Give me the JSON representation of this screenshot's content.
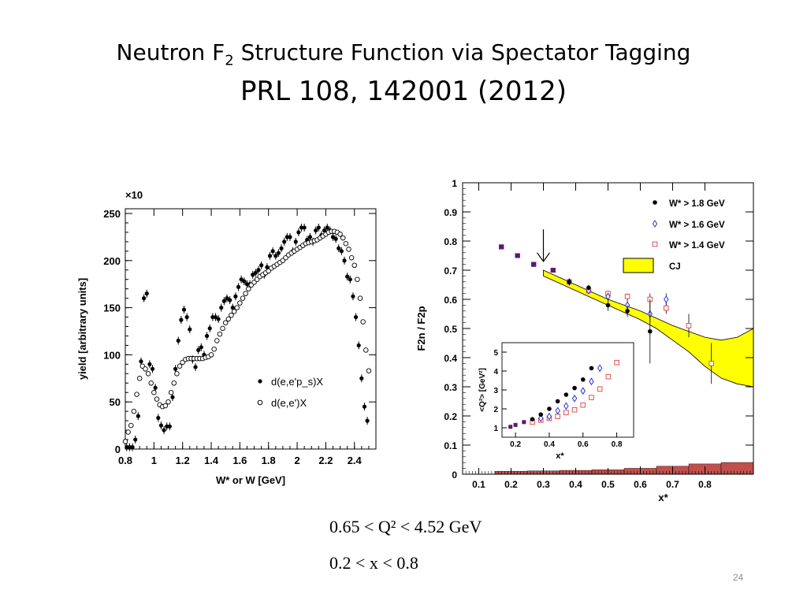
{
  "slide": {
    "title_main": "Neutron F",
    "title_sub": "2",
    "title_rest": " Structure Function via Spectator Tagging",
    "subtitle": "PRL 108, 142001 (2012)",
    "condition_q2": "0.65 < Q² < 4.52 GeV",
    "condition_x": "0.2 < x < 0.8",
    "page_number": "24"
  },
  "chart_data": [
    {
      "type": "scatter",
      "multiplier_label": "×10",
      "xlabel": "W* or W [GeV]",
      "ylabel": "yield [arbitrary units]",
      "xlim": [
        0.8,
        2.55
      ],
      "ylim": [
        0,
        255
      ],
      "xticks": [
        "0.8",
        "1",
        "1.2",
        "1.4",
        "1.6",
        "1.8",
        "2",
        "2.2",
        "2.4"
      ],
      "yticks": [
        "0",
        "50",
        "100",
        "150",
        "200",
        "250"
      ],
      "legend_position": "center-right",
      "series": [
        {
          "name": "d(e,e'p_s)X",
          "marker": "filled",
          "x": [
            0.81,
            0.83,
            0.85,
            0.87,
            0.89,
            0.91,
            0.93,
            0.95,
            0.97,
            0.99,
            1.01,
            1.03,
            1.05,
            1.07,
            1.09,
            1.11,
            1.13,
            1.15,
            1.17,
            1.19,
            1.21,
            1.23,
            1.25,
            1.27,
            1.29,
            1.31,
            1.33,
            1.35,
            1.37,
            1.39,
            1.41,
            1.43,
            1.45,
            1.47,
            1.49,
            1.51,
            1.53,
            1.55,
            1.57,
            1.59,
            1.61,
            1.63,
            1.65,
            1.67,
            1.69,
            1.71,
            1.73,
            1.75,
            1.77,
            1.79,
            1.81,
            1.83,
            1.85,
            1.87,
            1.89,
            1.91,
            1.93,
            1.95,
            1.97,
            1.99,
            2.01,
            2.03,
            2.05,
            2.07,
            2.09,
            2.11,
            2.13,
            2.15,
            2.17,
            2.19,
            2.21,
            2.23,
            2.25,
            2.27,
            2.29,
            2.31,
            2.33,
            2.35,
            2.37,
            2.39,
            2.41,
            2.43,
            2.45,
            2.47,
            2.49
          ],
          "y": [
            2,
            2,
            2,
            10,
            35,
            93,
            160,
            165,
            90,
            85,
            65,
            33,
            25,
            20,
            24,
            24,
            55,
            85,
            115,
            137,
            148,
            140,
            127,
            95,
            87,
            105,
            108,
            100,
            120,
            128,
            140,
            140,
            138,
            150,
            157,
            160,
            158,
            150,
            162,
            172,
            180,
            178,
            175,
            175,
            185,
            187,
            190,
            195,
            185,
            193,
            205,
            210,
            205,
            208,
            213,
            220,
            225,
            225,
            210,
            220,
            230,
            235,
            235,
            222,
            225,
            220,
            232,
            235,
            227,
            232,
            235,
            232,
            225,
            223,
            213,
            210,
            200,
            183,
            180,
            162,
            140,
            110,
            75,
            45,
            30
          ]
        },
        {
          "name": "d(e,e')X",
          "marker": "open",
          "x": [
            0.8,
            0.82,
            0.84,
            0.86,
            0.88,
            0.9,
            0.92,
            0.94,
            0.96,
            0.98,
            1.0,
            1.02,
            1.04,
            1.06,
            1.08,
            1.1,
            1.12,
            1.14,
            1.16,
            1.18,
            1.2,
            1.22,
            1.24,
            1.26,
            1.28,
            1.3,
            1.32,
            1.34,
            1.36,
            1.38,
            1.4,
            1.42,
            1.44,
            1.46,
            1.48,
            1.5,
            1.52,
            1.54,
            1.56,
            1.58,
            1.6,
            1.62,
            1.64,
            1.66,
            1.68,
            1.7,
            1.72,
            1.74,
            1.76,
            1.78,
            1.8,
            1.82,
            1.84,
            1.86,
            1.88,
            1.9,
            1.92,
            1.94,
            1.96,
            1.98,
            2.0,
            2.02,
            2.04,
            2.06,
            2.08,
            2.1,
            2.12,
            2.14,
            2.16,
            2.18,
            2.2,
            2.22,
            2.24,
            2.26,
            2.28,
            2.3,
            2.32,
            2.34,
            2.36,
            2.38,
            2.4,
            2.42,
            2.44,
            2.46,
            2.48,
            2.5
          ],
          "y": [
            8,
            18,
            25,
            40,
            58,
            75,
            88,
            85,
            80,
            70,
            60,
            53,
            47,
            45,
            46,
            50,
            60,
            70,
            80,
            88,
            92,
            95,
            96,
            96,
            96,
            96,
            96,
            96,
            97,
            98,
            100,
            106,
            115,
            122,
            128,
            134,
            138,
            142,
            146,
            150,
            155,
            160,
            165,
            170,
            174,
            177,
            180,
            183,
            185,
            187,
            189,
            192,
            194,
            196,
            198,
            200,
            203,
            206,
            208,
            210,
            212,
            214,
            216,
            218,
            219,
            220,
            221,
            222,
            224,
            226,
            228,
            230,
            231,
            231,
            230,
            228,
            224,
            218,
            212,
            203,
            195,
            180,
            160,
            135,
            105,
            83
          ]
        }
      ]
    },
    {
      "type": "scatter",
      "xlabel": "x*",
      "ylabel": "F2n / F2p",
      "xlim": [
        0.05,
        0.95
      ],
      "ylim": [
        0,
        1.0
      ],
      "xticks": [
        "0.1",
        "0.2",
        "0.3",
        "0.4",
        "0.5",
        "0.6",
        "0.7",
        "0.8"
      ],
      "yticks": [
        "0",
        "0.1",
        "0.2",
        "0.3",
        "0.4",
        "0.5",
        "0.6",
        "0.7",
        "0.8",
        "0.9",
        "1"
      ],
      "legend_position": "top-right",
      "arrow_at_x": 0.3,
      "series": [
        {
          "name": "W* > 1.8 GeV",
          "marker": "filled-circle",
          "color": "#000000",
          "x": [
            0.17,
            0.22,
            0.27,
            0.33,
            0.38,
            0.44,
            0.5,
            0.56,
            0.63
          ],
          "y": [
            0.78,
            0.75,
            0.72,
            0.7,
            0.66,
            0.64,
            0.58,
            0.56,
            0.49
          ],
          "err": [
            0.005,
            0.005,
            0.005,
            0.005,
            0.01,
            0.01,
            0.02,
            0.02,
            0.11
          ]
        },
        {
          "name": "W* > 1.6 GeV",
          "marker": "open-diamond",
          "color": "#2a35d6",
          "x": [
            0.17,
            0.22,
            0.27,
            0.33,
            0.38,
            0.44,
            0.5,
            0.56,
            0.63,
            0.68
          ],
          "y": [
            0.78,
            0.75,
            0.72,
            0.7,
            0.66,
            0.63,
            0.61,
            0.58,
            0.55,
            0.6
          ],
          "err": [
            0.005,
            0.005,
            0.005,
            0.005,
            0.01,
            0.01,
            0.01,
            0.02,
            0.03,
            0.02
          ]
        },
        {
          "name": "W* > 1.4 GeV",
          "marker": "open-square",
          "color": "#e05050",
          "x": [
            0.17,
            0.22,
            0.27,
            0.33,
            0.38,
            0.44,
            0.5,
            0.56,
            0.63,
            0.68,
            0.75,
            0.82
          ],
          "y": [
            0.78,
            0.75,
            0.72,
            0.7,
            0.66,
            0.63,
            0.62,
            0.61,
            0.6,
            0.57,
            0.51,
            0.38
          ],
          "err": [
            0.005,
            0.005,
            0.005,
            0.005,
            0.01,
            0.01,
            0.01,
            0.01,
            0.02,
            0.02,
            0.04,
            0.07
          ]
        }
      ],
      "band": {
        "name": "CJ",
        "color": "#ffff00",
        "x": [
          0.3,
          0.35,
          0.4,
          0.45,
          0.5,
          0.55,
          0.6,
          0.65,
          0.7,
          0.75,
          0.8,
          0.85,
          0.9,
          0.95
        ],
        "low": [
          0.68,
          0.655,
          0.63,
          0.605,
          0.58,
          0.555,
          0.53,
          0.5,
          0.46,
          0.42,
          0.37,
          0.33,
          0.31,
          0.3
        ],
        "high": [
          0.7,
          0.675,
          0.65,
          0.625,
          0.6,
          0.58,
          0.56,
          0.535,
          0.51,
          0.49,
          0.47,
          0.46,
          0.47,
          0.5
        ]
      },
      "systematics": {
        "color": "#c0504d",
        "x": [
          0.2,
          0.3,
          0.4,
          0.5,
          0.6,
          0.7,
          0.8,
          0.9
        ],
        "height": [
          0.005,
          0.006,
          0.008,
          0.01,
          0.015,
          0.022,
          0.03,
          0.035
        ]
      },
      "inset": {
        "xlabel": "x*",
        "ylabel": "<Q²> [GeV²]",
        "xlim": [
          0.12,
          0.9
        ],
        "ylim": [
          0.5,
          5.5
        ],
        "xticks": [
          "0.2",
          "0.4",
          "0.6",
          "0.8"
        ],
        "yticks": [
          "1",
          "2",
          "3",
          "4",
          "5"
        ],
        "series": [
          {
            "name": "W* > 1.8 GeV",
            "marker": "filled-circle",
            "color": "#000000",
            "x": [
              0.17,
              0.2,
              0.25,
              0.3,
              0.35,
              0.4,
              0.45,
              0.5,
              0.55,
              0.6,
              0.65
            ],
            "y": [
              1.05,
              1.15,
              1.3,
              1.45,
              1.7,
              2.0,
              2.4,
              2.75,
              3.1,
              3.55,
              4.15
            ]
          },
          {
            "name": "W* > 1.6 GeV",
            "marker": "open-diamond",
            "color": "#2a35d6",
            "x": [
              0.35,
              0.4,
              0.45,
              0.5,
              0.55,
              0.6,
              0.65,
              0.7
            ],
            "y": [
              1.5,
              1.6,
              1.9,
              2.15,
              2.55,
              2.95,
              3.45,
              4.15
            ]
          },
          {
            "name": "W* > 1.4 GeV",
            "marker": "open-square",
            "color": "#e05050",
            "x": [
              0.3,
              0.35,
              0.4,
              0.45,
              0.5,
              0.55,
              0.6,
              0.65,
              0.7,
              0.75,
              0.8
            ],
            "y": [
              1.3,
              1.4,
              1.5,
              1.6,
              1.8,
              1.95,
              2.2,
              2.6,
              3.05,
              3.7,
              4.45
            ]
          }
        ]
      }
    }
  ]
}
